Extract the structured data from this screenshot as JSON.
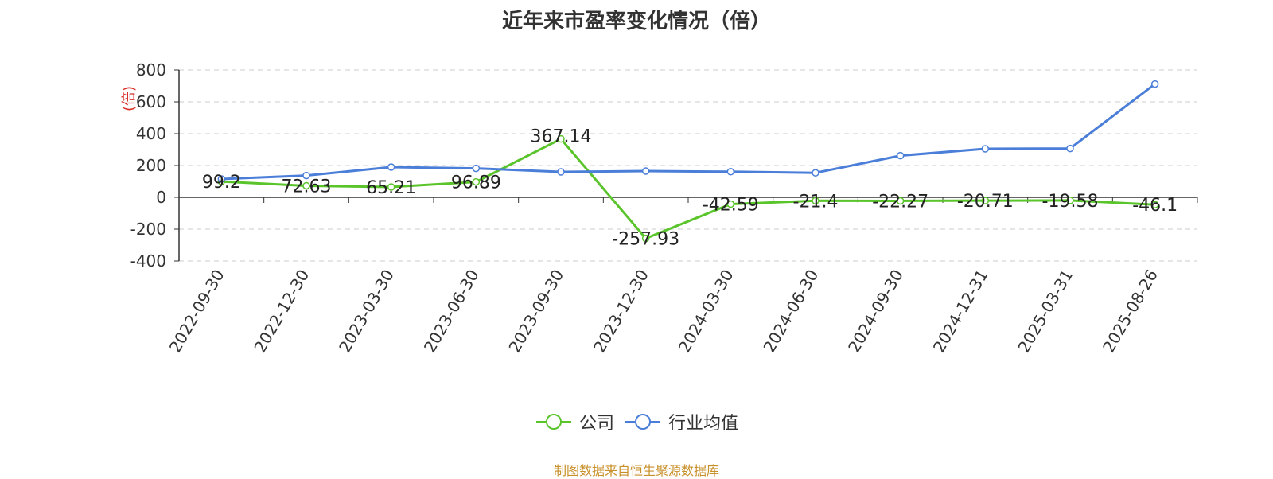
{
  "title": "近年来市盈率变化情况（倍）",
  "footer": "制图数据来自恒生聚源数据库",
  "colors": {
    "company": "#5ac42b",
    "industry": "#4a7ed8",
    "ylabel": "#d9312a"
  },
  "chart_data": {
    "type": "line",
    "title": "近年来市盈率变化情况（倍）",
    "ylabel": "(倍)",
    "xlabel": "",
    "categories": [
      "2022-09-30",
      "2022-12-30",
      "2023-03-30",
      "2023-06-30",
      "2023-09-30",
      "2023-12-30",
      "2024-03-30",
      "2024-06-30",
      "2024-09-30",
      "2024-12-31",
      "2025-03-31",
      "2025-08-26"
    ],
    "ylim": [
      -400,
      800
    ],
    "yticks": [
      -400,
      -200,
      0,
      200,
      400,
      600,
      800
    ],
    "grid": true,
    "legend_position": "bottom",
    "series": [
      {
        "name": "公司",
        "color": "#5ac42b",
        "values": [
          99.2,
          72.63,
          65.21,
          96.89,
          367.14,
          -257.93,
          -42.59,
          -21.4,
          -22.27,
          -20.71,
          -19.58,
          -46.1
        ],
        "labels": [
          "99.2",
          "72.63",
          "65.21",
          "96.89",
          "367.14",
          "-257.93",
          "-42.59",
          "-21.4",
          "-22.27",
          "-20.71",
          "-19.58",
          "-46.1"
        ]
      },
      {
        "name": "行业均值",
        "color": "#4a7ed8",
        "values": [
          115,
          137,
          190,
          182,
          160,
          165,
          161,
          154,
          262,
          305,
          307,
          712
        ]
      }
    ]
  }
}
